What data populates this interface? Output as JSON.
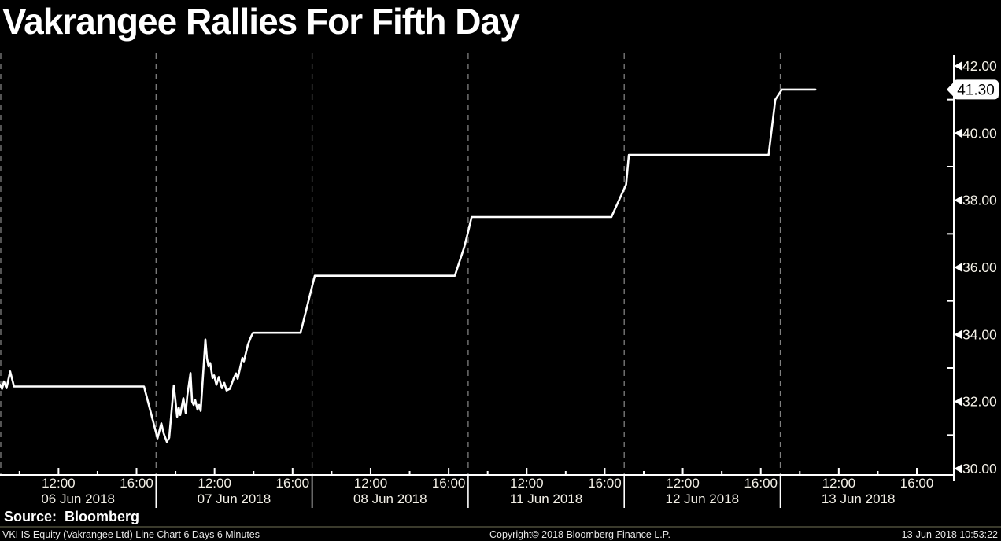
{
  "title": "Vakrangee Rallies For Fifth Day",
  "source": {
    "label": "Source:",
    "value": "Bloomberg"
  },
  "footer": {
    "left": "VKI IS Equity (Vakrangee Ltd) Line Chart 6 Days 6 Minutes",
    "center": "Copyright© 2018 Bloomberg Finance L.P.",
    "right": "13-Jun-2018 10:53:22"
  },
  "last_price": {
    "label": "41.30",
    "value": 41.3
  },
  "colors": {
    "background": "#000000",
    "line": "#ffffff",
    "axis": "#ffffff",
    "grid_dash": "#7f7f7f",
    "tick_label": "#f3f0e7",
    "tag_bg": "#ffffff",
    "tag_text": "#000000",
    "separator": "#3a3a2c"
  },
  "chart_data": {
    "type": "line",
    "title": "Vakrangee Rallies For Fifth Day",
    "security": "VKI IS Equity (Vakrangee Ltd)",
    "period": "6 Days 6 Minutes",
    "legend": "none",
    "grid": "vertical dashed lines at day boundaries",
    "y_axis_side": "right",
    "ylim": [
      29.8,
      42.35
    ],
    "y_major_ticks": [
      30,
      32,
      34,
      36,
      38,
      40,
      42
    ],
    "y_major_labels": [
      "30.00",
      "32.00",
      "34.00",
      "36.00",
      "38.00",
      "40.00",
      "42.00"
    ],
    "y_minor_ticks": [
      31,
      33,
      35,
      37,
      39,
      41
    ],
    "x_days": [
      "06 Jun 2018",
      "07 Jun 2018",
      "08 Jun 2018",
      "11 Jun 2018",
      "12 Jun 2018",
      "13 Jun 2018"
    ],
    "x_day_span_hours": [
      9,
      17
    ],
    "x_labeled_hours": [
      {
        "hour": 12,
        "label": "12:00"
      },
      {
        "hour": 16,
        "label": "16:00"
      }
    ],
    "x_minor_tick_hours": [
      10,
      14
    ],
    "last_price": 41.3,
    "daily_flat_levels": [
      32.45,
      34.05,
      35.75,
      37.5,
      39.35,
      41.3
    ],
    "series": [
      {
        "name": "VKI IS Equity last price",
        "color": "#ffffff",
        "points_t_price": [
          [
            0.0,
            32.5
          ],
          [
            0.013,
            32.38
          ],
          [
            0.025,
            32.6
          ],
          [
            0.042,
            32.4
          ],
          [
            0.065,
            32.9
          ],
          [
            0.09,
            32.45
          ],
          [
            0.923,
            32.45
          ],
          [
            1.004,
            31.0
          ],
          [
            1.009,
            30.9
          ],
          [
            1.034,
            31.35
          ],
          [
            1.049,
            31.05
          ],
          [
            1.069,
            30.8
          ],
          [
            1.084,
            30.92
          ],
          [
            1.114,
            32.48
          ],
          [
            1.135,
            31.55
          ],
          [
            1.145,
            31.82
          ],
          [
            1.155,
            31.6
          ],
          [
            1.175,
            32.1
          ],
          [
            1.19,
            31.66
          ],
          [
            1.2,
            32.18
          ],
          [
            1.221,
            32.85
          ],
          [
            1.231,
            32.0
          ],
          [
            1.241,
            31.9
          ],
          [
            1.251,
            32.04
          ],
          [
            1.266,
            31.76
          ],
          [
            1.276,
            31.9
          ],
          [
            1.286,
            31.72
          ],
          [
            1.316,
            33.85
          ],
          [
            1.326,
            33.3
          ],
          [
            1.336,
            33.05
          ],
          [
            1.347,
            33.15
          ],
          [
            1.362,
            32.7
          ],
          [
            1.372,
            32.78
          ],
          [
            1.387,
            32.5
          ],
          [
            1.402,
            32.73
          ],
          [
            1.422,
            32.4
          ],
          [
            1.437,
            32.56
          ],
          [
            1.452,
            32.33
          ],
          [
            1.473,
            32.38
          ],
          [
            1.498,
            32.7
          ],
          [
            1.513,
            32.84
          ],
          [
            1.523,
            32.68
          ],
          [
            1.553,
            33.3
          ],
          [
            1.563,
            33.2
          ],
          [
            1.589,
            33.7
          ],
          [
            1.61,
            33.95
          ],
          [
            1.622,
            34.05
          ],
          [
            1.926,
            34.05
          ],
          [
            2.017,
            35.75
          ],
          [
            2.915,
            35.75
          ],
          [
            2.975,
            36.6
          ],
          [
            3.002,
            37.1
          ],
          [
            3.022,
            37.5
          ],
          [
            3.918,
            37.5
          ],
          [
            4.012,
            38.47
          ],
          [
            4.03,
            39.35
          ],
          [
            4.925,
            39.35
          ],
          [
            4.968,
            41.0
          ],
          [
            5.01,
            41.3
          ],
          [
            5.225,
            41.3
          ]
        ]
      }
    ]
  }
}
